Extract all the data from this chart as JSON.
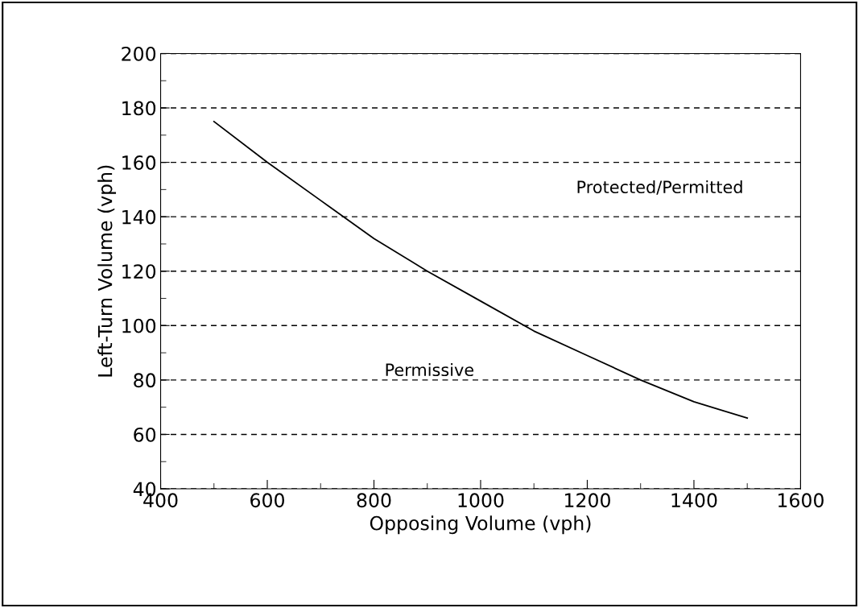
{
  "chart_data": {
    "type": "line",
    "xlabel": "Opposing Volume (vph)",
    "ylabel": "Left-Turn Volume (vph)",
    "x": [
      500,
      600,
      700,
      800,
      900,
      1000,
      1100,
      1200,
      1300,
      1400,
      1500
    ],
    "series": [
      {
        "color": "#000000",
        "values": [
          175,
          160,
          146,
          132,
          120,
          109,
          98,
          89,
          80,
          72,
          66
        ]
      }
    ],
    "xlim": [
      400,
      1600
    ],
    "xticks": [
      400,
      600,
      800,
      1000,
      1200,
      1400,
      1600
    ],
    "ylim": [
      40,
      200
    ],
    "yticks": [
      40,
      60,
      80,
      100,
      120,
      140,
      160,
      180,
      200
    ],
    "grid": "y",
    "legend": false,
    "marker": "none",
    "line_style": "solid",
    "annotations": [
      "Protected/Permitted",
      "Permissive"
    ]
  }
}
